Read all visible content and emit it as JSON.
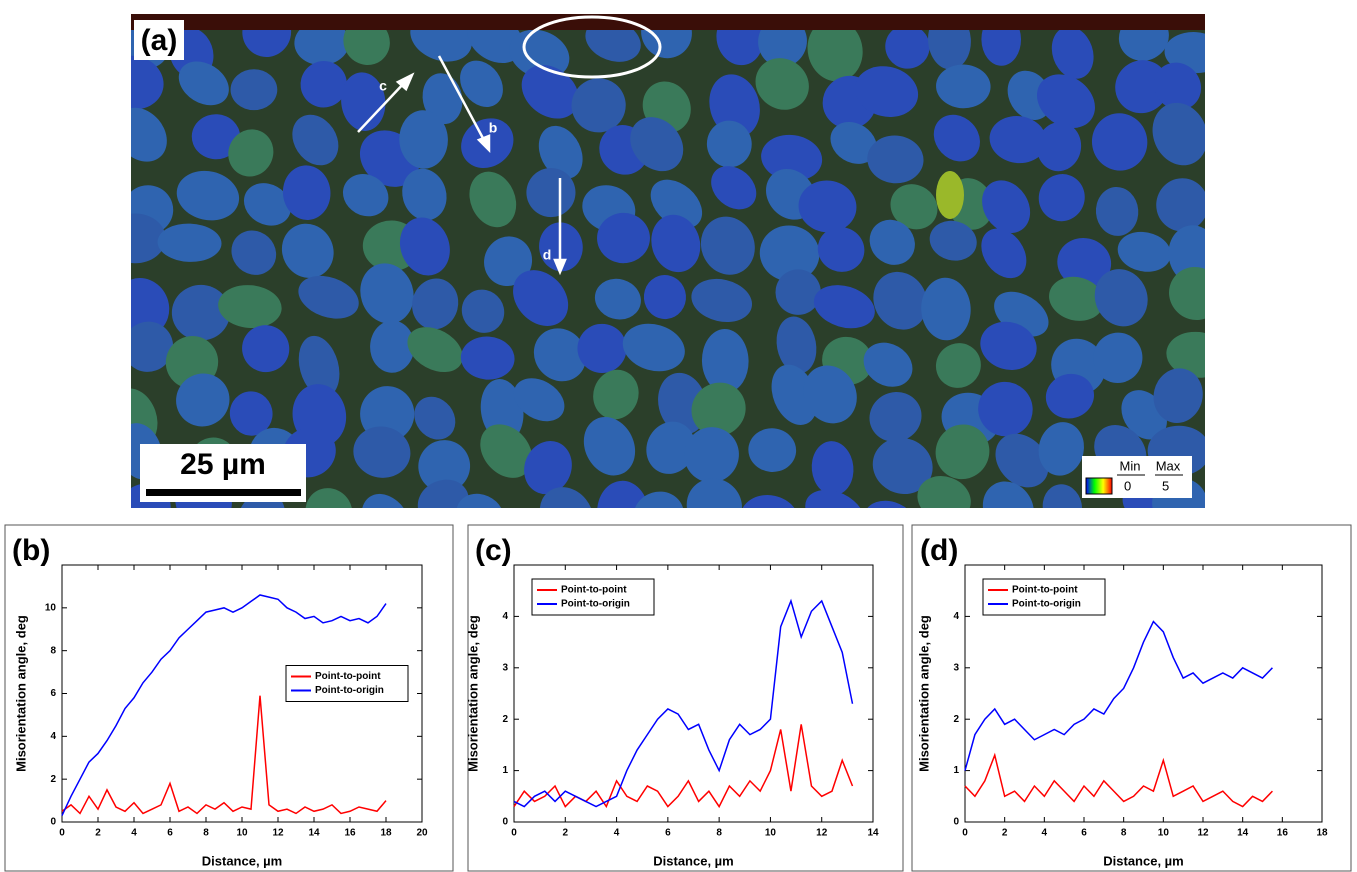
{
  "image_panel": {
    "panel_label": "(a)",
    "scale_bar": "25 µm",
    "arrows": [
      "c",
      "b",
      "d"
    ],
    "colorbar": {
      "min_label": "Min",
      "max_label": "Max",
      "min": 0,
      "max": 5
    }
  },
  "chart_data": [
    {
      "type": "line",
      "panel_label": "(b)",
      "x_label": "Distance, µm",
      "y_label": "Misorientation angle, deg",
      "x": [
        0,
        0.5,
        1,
        1.5,
        2,
        2.5,
        3,
        3.5,
        4,
        4.5,
        5,
        5.5,
        6,
        6.5,
        7,
        7.5,
        8,
        8.5,
        9,
        9.5,
        10,
        10.5,
        11,
        11.5,
        12,
        12.5,
        13,
        13.5,
        14,
        14.5,
        15,
        15.5,
        16,
        16.5,
        17,
        17.5,
        18
      ],
      "series": [
        {
          "name": "Point-to-point",
          "color": "#ff0000",
          "values": [
            0.5,
            0.8,
            0.4,
            1.2,
            0.6,
            1.5,
            0.7,
            0.5,
            0.9,
            0.4,
            0.6,
            0.8,
            1.8,
            0.5,
            0.7,
            0.4,
            0.8,
            0.6,
            0.9,
            0.5,
            0.7,
            0.6,
            5.9,
            0.8,
            0.5,
            0.6,
            0.4,
            0.7,
            0.5,
            0.6,
            0.8,
            0.4,
            0.5,
            0.7,
            0.6,
            0.5,
            1.0
          ]
        },
        {
          "name": "Point-to-origin",
          "color": "#0000ff",
          "values": [
            0.3,
            1.2,
            2.0,
            2.8,
            3.2,
            3.8,
            4.5,
            5.3,
            5.8,
            6.5,
            7.0,
            7.6,
            8.0,
            8.6,
            9.0,
            9.4,
            9.8,
            9.9,
            10.0,
            9.8,
            10.0,
            10.3,
            10.6,
            10.5,
            10.4,
            10.0,
            9.8,
            9.5,
            9.6,
            9.3,
            9.4,
            9.6,
            9.4,
            9.5,
            9.3,
            9.6,
            10.2
          ]
        }
      ],
      "xlim": [
        0,
        20
      ],
      "xticks": [
        0,
        2,
        4,
        6,
        8,
        10,
        12,
        14,
        16,
        18,
        20
      ],
      "ylim": [
        0,
        12
      ],
      "yticks": [
        0,
        2,
        4,
        6,
        8,
        10
      ],
      "grid": false,
      "legend": "center right"
    },
    {
      "type": "line",
      "panel_label": "(c)",
      "x_label": "Distance, µm",
      "y_label": "Misorientation angle, deg",
      "x": [
        0,
        0.4,
        0.8,
        1.2,
        1.6,
        2,
        2.4,
        2.8,
        3.2,
        3.6,
        4,
        4.4,
        4.8,
        5.2,
        5.6,
        6,
        6.4,
        6.8,
        7.2,
        7.6,
        8,
        8.4,
        8.8,
        9.2,
        9.6,
        10,
        10.4,
        10.8,
        11.2,
        11.6,
        12,
        12.4,
        12.8,
        13.2
      ],
      "series": [
        {
          "name": "Point-to-point",
          "color": "#ff0000",
          "values": [
            0.3,
            0.6,
            0.4,
            0.5,
            0.7,
            0.3,
            0.5,
            0.4,
            0.6,
            0.3,
            0.8,
            0.5,
            0.4,
            0.7,
            0.6,
            0.3,
            0.5,
            0.8,
            0.4,
            0.6,
            0.3,
            0.7,
            0.5,
            0.8,
            0.6,
            1.0,
            1.8,
            0.6,
            1.9,
            0.7,
            0.5,
            0.6,
            1.2,
            0.7
          ]
        },
        {
          "name": "Point-to-origin",
          "color": "#0000ff",
          "values": [
            0.4,
            0.3,
            0.5,
            0.6,
            0.4,
            0.6,
            0.5,
            0.4,
            0.3,
            0.4,
            0.5,
            1.0,
            1.4,
            1.7,
            2.0,
            2.2,
            2.1,
            1.8,
            1.9,
            1.4,
            1.0,
            1.6,
            1.9,
            1.7,
            1.8,
            2.0,
            3.8,
            4.3,
            3.6,
            4.1,
            4.3,
            3.8,
            3.3,
            2.3
          ]
        }
      ],
      "xlim": [
        0,
        14
      ],
      "xticks": [
        0,
        2,
        4,
        6,
        8,
        10,
        12,
        14
      ],
      "ylim": [
        0,
        5
      ],
      "yticks": [
        0,
        1,
        2,
        3,
        4
      ],
      "grid": false,
      "legend": "upper left"
    },
    {
      "type": "line",
      "panel_label": "(d)",
      "x_label": "Distance, µm",
      "y_label": "Misorientation angle, deg",
      "x": [
        0,
        0.5,
        1,
        1.5,
        2,
        2.5,
        3,
        3.5,
        4,
        4.5,
        5,
        5.5,
        6,
        6.5,
        7,
        7.5,
        8,
        8.5,
        9,
        9.5,
        10,
        10.5,
        11,
        11.5,
        12,
        12.5,
        13,
        13.5,
        14,
        14.5,
        15,
        15.5
      ],
      "series": [
        {
          "name": "Point-to-point",
          "color": "#ff0000",
          "values": [
            0.7,
            0.5,
            0.8,
            1.3,
            0.5,
            0.6,
            0.4,
            0.7,
            0.5,
            0.8,
            0.6,
            0.4,
            0.7,
            0.5,
            0.8,
            0.6,
            0.4,
            0.5,
            0.7,
            0.6,
            1.2,
            0.5,
            0.6,
            0.7,
            0.4,
            0.5,
            0.6,
            0.4,
            0.3,
            0.5,
            0.4,
            0.6
          ]
        },
        {
          "name": "Point-to-origin",
          "color": "#0000ff",
          "values": [
            1.0,
            1.7,
            2.0,
            2.2,
            1.9,
            2.0,
            1.8,
            1.6,
            1.7,
            1.8,
            1.7,
            1.9,
            2.0,
            2.2,
            2.1,
            2.4,
            2.6,
            3.0,
            3.5,
            3.9,
            3.7,
            3.2,
            2.8,
            2.9,
            2.7,
            2.8,
            2.9,
            2.8,
            3.0,
            2.9,
            2.8,
            3.0
          ]
        }
      ],
      "xlim": [
        0,
        18
      ],
      "xticks": [
        0,
        2,
        4,
        6,
        8,
        10,
        12,
        14,
        16,
        18
      ],
      "ylim": [
        0,
        5
      ],
      "yticks": [
        0,
        1,
        2,
        3,
        4
      ],
      "grid": false,
      "legend": "upper left"
    }
  ]
}
